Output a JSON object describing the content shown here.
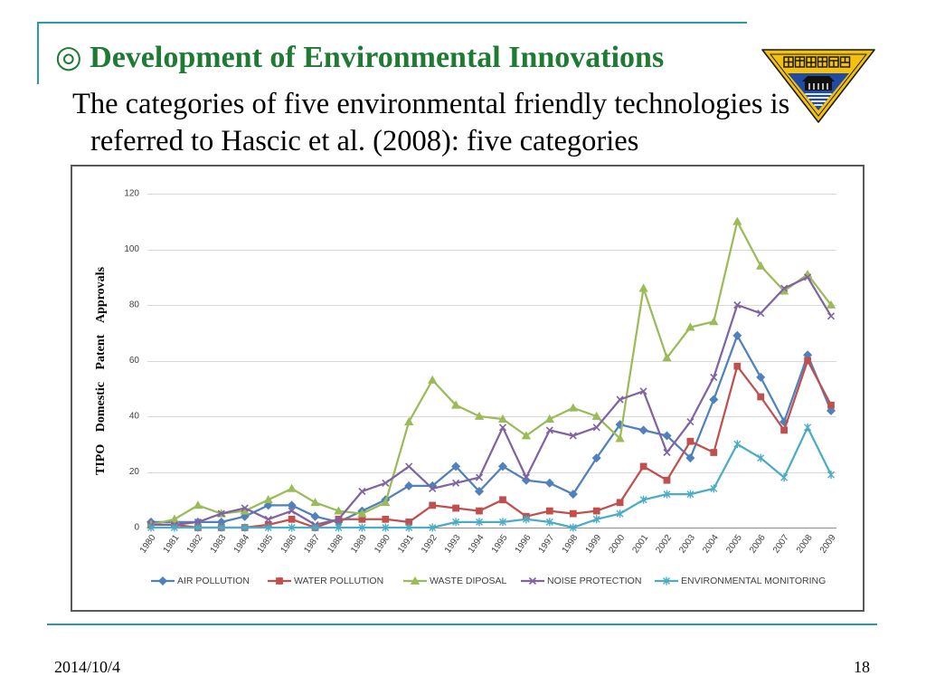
{
  "slide": {
    "title": "◎ Development of Environmental Innovations",
    "body_line1": "The categories of five environmental friendly technologies is",
    "body_line2": "referred to Hascic et al. (2008): five categories",
    "logo": {
      "icon": "university-emblem-icon",
      "text": "學大央中立國"
    },
    "date": "2014/10/4",
    "page_number": "18"
  },
  "colors": {
    "title": "#1f7a34",
    "rule": "#2a9ba8",
    "text": "#000000",
    "chart_frame": "#595959"
  },
  "chart_data": {
    "type": "line",
    "title": "",
    "xlabel": "",
    "ylabel": "TIPO Domestic Patent Approvals",
    "ylim": [
      0,
      120
    ],
    "yticks": [
      0,
      20,
      40,
      60,
      80,
      100,
      120
    ],
    "grid": true,
    "legend_position": "bottom",
    "categories": [
      "1980",
      "1981",
      "1982",
      "1983",
      "1984",
      "1985",
      "1986",
      "1987",
      "1988",
      "1989",
      "1990",
      "1991",
      "1992",
      "1993",
      "1994",
      "1995",
      "1996",
      "1997",
      "1998",
      "1999",
      "2000",
      "2001",
      "2002",
      "2003",
      "2004",
      "2005",
      "2006",
      "2007",
      "2008",
      "2009"
    ],
    "series": [
      {
        "name": "AIR POLLUTION",
        "color": "#4f81bd",
        "marker": "diamond",
        "values": [
          2,
          2,
          2,
          2,
          4,
          8,
          8,
          4,
          2,
          6,
          10,
          15,
          15,
          22,
          13,
          22,
          17,
          16,
          12,
          25,
          37,
          35,
          33,
          25,
          46,
          69,
          54,
          38,
          62,
          42
        ]
      },
      {
        "name": "WATER POLLUTION",
        "color": "#c0504d",
        "marker": "square",
        "values": [
          1,
          1,
          0,
          0,
          0,
          1,
          3,
          0,
          3,
          3,
          3,
          2,
          8,
          7,
          6,
          10,
          4,
          6,
          5,
          6,
          9,
          22,
          17,
          31,
          27,
          58,
          47,
          35,
          60,
          44
        ]
      },
      {
        "name": "WASTE DIPOSAL",
        "color": "#9bbb59",
        "marker": "triangle",
        "values": [
          1,
          3,
          8,
          5,
          6,
          10,
          14,
          9,
          6,
          5,
          9,
          38,
          53,
          44,
          40,
          39,
          33,
          39,
          43,
          40,
          32,
          86,
          61,
          72,
          74,
          110,
          94,
          85,
          91,
          80
        ]
      },
      {
        "name": "NOISE PROTECTION",
        "color": "#8064a2",
        "marker": "x",
        "values": [
          1,
          1,
          2,
          5,
          7,
          3,
          6,
          1,
          3,
          13,
          16,
          22,
          14,
          16,
          18,
          36,
          18,
          35,
          33,
          36,
          46,
          49,
          27,
          38,
          54,
          80,
          77,
          86,
          90,
          76
        ]
      },
      {
        "name": "ENVIRONMENTAL MONITORING",
        "color": "#4bacc6",
        "marker": "star",
        "values": [
          0,
          0,
          0,
          0,
          0,
          0,
          0,
          0,
          0,
          0,
          0,
          0,
          0,
          2,
          2,
          2,
          3,
          2,
          0,
          3,
          5,
          10,
          12,
          12,
          14,
          30,
          25,
          18,
          36,
          19
        ]
      }
    ]
  }
}
